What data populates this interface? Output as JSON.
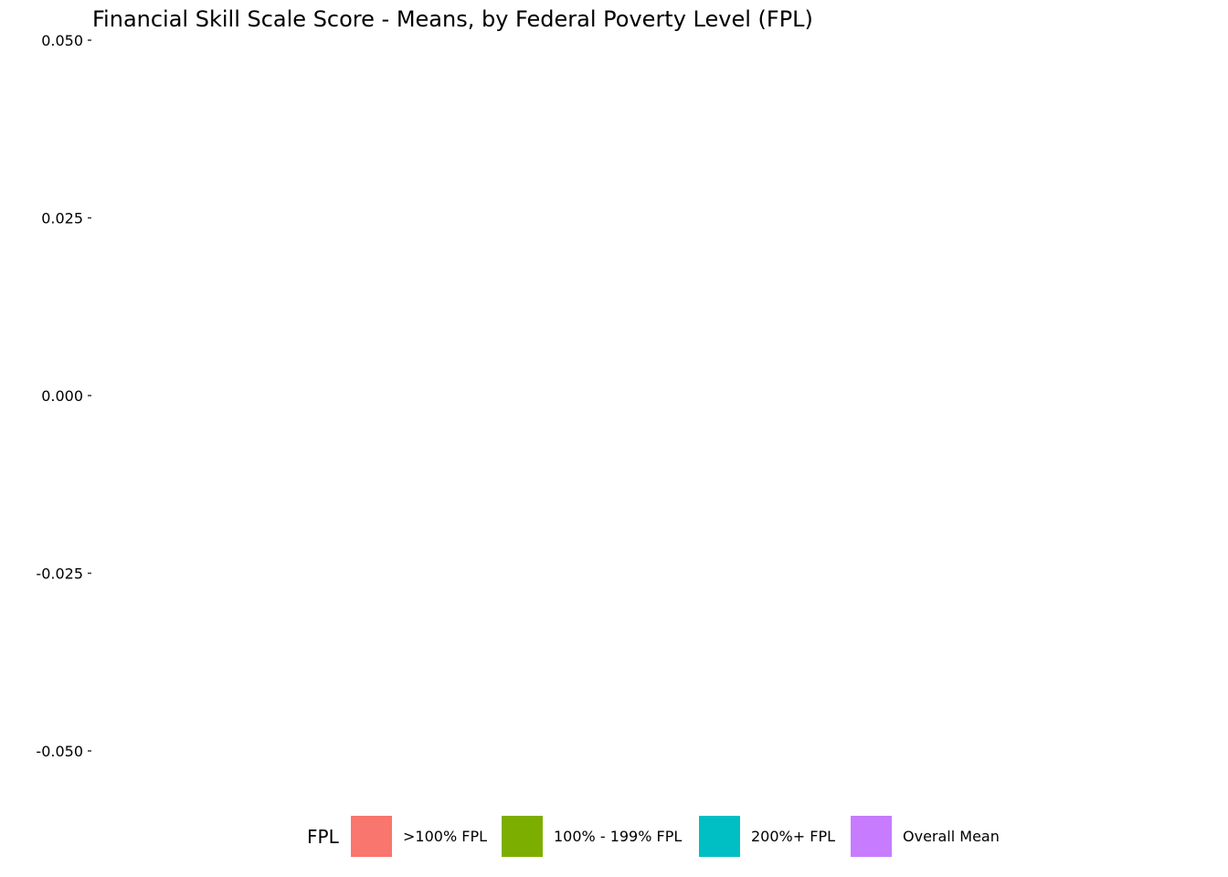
{
  "chart_data": {
    "type": "bar",
    "title": "Financial Skill Scale Score - Means, by Federal Poverty Level (FPL)",
    "xlabel": "",
    "ylabel": "",
    "categories": [],
    "series": [],
    "ylim": [
      -0.05,
      0.05
    ],
    "yticks": [
      0.05,
      0.025,
      0.0,
      -0.025,
      -0.05
    ],
    "ytick_labels": [
      "0.050",
      "0.025",
      "0.000",
      "-0.025",
      "-0.050"
    ],
    "grid": false,
    "legend": {
      "title": "FPL",
      "placement": "bottom",
      "entries": [
        {
          "label": ">100% FPL",
          "color": "#F8766D"
        },
        {
          "label": "100% - 199% FPL",
          "color": "#7CAE00"
        },
        {
          "label": "200%+ FPL",
          "color": "#00BFC4"
        },
        {
          "label": "Overall Mean",
          "color": "#C77CFF"
        }
      ]
    }
  }
}
